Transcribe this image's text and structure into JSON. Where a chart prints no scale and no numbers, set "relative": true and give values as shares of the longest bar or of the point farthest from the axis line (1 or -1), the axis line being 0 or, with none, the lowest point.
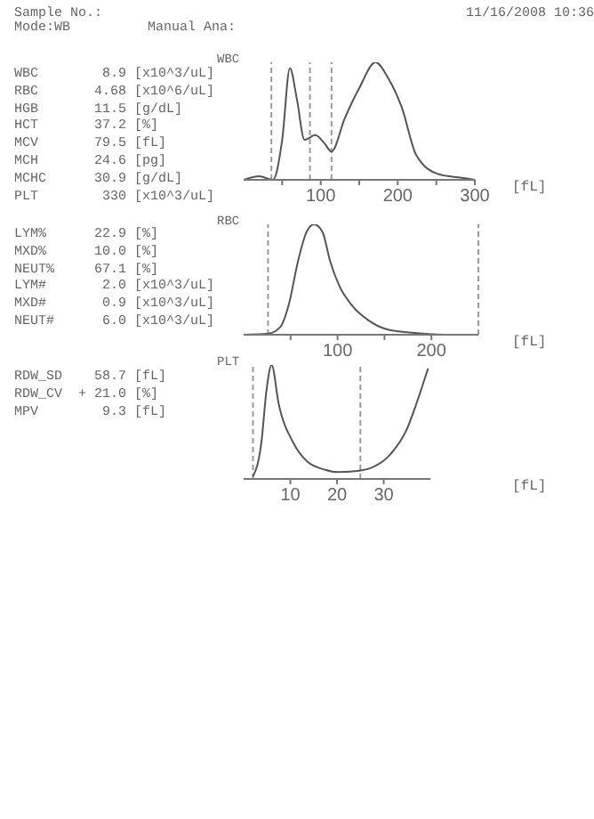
{
  "chart_data": [
    {
      "type": "other",
      "annotations": [
        "Sample No.:",
        "Mode:WB",
        "Manual Ana:",
        "11/16/2008 10:36"
      ]
    },
    {
      "type": "other",
      "annotations": [
        "WBC        8.9 [x10^3/uL]",
        "RBC       4.68 [x10^6/uL]",
        "HGB       11.5 [g/dL]",
        "HCT       37.2 [%]",
        "MCV       79.5 [fL]",
        "MCH       24.6 [pg]",
        "MCHC      30.9 [g/dL]",
        "PLT        330 [x10^3/uL]"
      ]
    },
    {
      "type": "line",
      "title": "WBC",
      "xlabel": "[fL]",
      "relative": true,
      "x": [
        0,
        20,
        38,
        50,
        60,
        69,
        79,
        93,
        105,
        114,
        131,
        150,
        171,
        188,
        205,
        224,
        252,
        279,
        300
      ],
      "series": [
        {
          "color": "#555555",
          "values": [
            0,
            0.03,
            0,
            0.34,
            0.95,
            0.69,
            0.34,
            0.38,
            0.31,
            0.24,
            0.52,
            0.78,
            1,
            0.86,
            0.62,
            0.21,
            0.05,
            0.02,
            0
          ]
        }
      ],
      "xlim": [
        0,
        300
      ],
      "xticks": [
        {
          "value": 50,
          "label": null
        },
        100,
        {
          "value": 150,
          "label": null
        },
        200,
        {
          "value": 250,
          "label": null
        },
        300
      ],
      "ref_lines": [
        {
          "axis": "x",
          "value": 36,
          "line_style": "dashed",
          "color": "#999999"
        },
        {
          "axis": "x",
          "value": 86,
          "line_style": "dashed",
          "color": "#999999"
        },
        {
          "axis": "x",
          "value": 114,
          "line_style": "dashed",
          "color": "#999999"
        }
      ]
    },
    {
      "type": "other",
      "annotations": [
        "LYM%      22.9 [%]",
        "MXD%      10.0 [%]",
        "NEUT%     67.1 [%]",
        "LYM#       2.0 [x10^3/uL]",
        "MXD#       0.9 [x10^3/uL]",
        "NEUT#      6.0 [x10^3/uL]"
      ]
    },
    {
      "type": "line",
      "title": "RBC",
      "xlabel": "[fL]",
      "relative": true,
      "x": [
        0,
        26,
        39,
        48,
        58,
        67,
        75,
        84,
        92,
        102,
        115,
        133,
        152,
        177,
        215,
        250
      ],
      "series": [
        {
          "color": "#555555",
          "values": [
            0,
            0.01,
            0.07,
            0.27,
            0.67,
            0.93,
            1,
            0.93,
            0.67,
            0.44,
            0.27,
            0.13,
            0.05,
            0.02,
            0,
            0
          ]
        }
      ],
      "xlim": [
        0,
        250
      ],
      "xticks": [
        {
          "value": 50,
          "label": null
        },
        100,
        {
          "value": 150,
          "label": null
        },
        200
      ],
      "ref_lines": [
        {
          "axis": "x",
          "value": 26,
          "line_style": "dashed",
          "color": "#999999"
        },
        {
          "axis": "x",
          "value": 250,
          "line_style": "dashed",
          "color": "#999999"
        }
      ]
    },
    {
      "type": "other",
      "annotations": [
        "RDW_SD    58.7 [fL]",
        "RDW_CV  + 21.0 [%]",
        "MPV        9.3 [fL]"
      ]
    },
    {
      "type": "line",
      "title": "PLT",
      "xlabel": "[fL]",
      "relative": true,
      "x": [
        2,
        3.8,
        4.9,
        6,
        7.5,
        10.6,
        13.7,
        17.5,
        20,
        24.4,
        27.5,
        31.3,
        35,
        37,
        39.5
      ],
      "series": [
        {
          "color": "#555555",
          "values": [
            0.02,
            0.32,
            0.78,
            1,
            0.66,
            0.32,
            0.15,
            0.08,
            0.06,
            0.07,
            0.1,
            0.21,
            0.44,
            0.66,
            0.97
          ]
        }
      ],
      "xlim": [
        0,
        40
      ],
      "xticks": [
        10,
        20,
        30
      ],
      "ref_lines": [
        {
          "axis": "x",
          "value": 2,
          "line_style": "dashed",
          "color": "#999999"
        },
        {
          "axis": "x",
          "value": 25,
          "line_style": "dashed",
          "color": "#999999"
        }
      ]
    }
  ]
}
